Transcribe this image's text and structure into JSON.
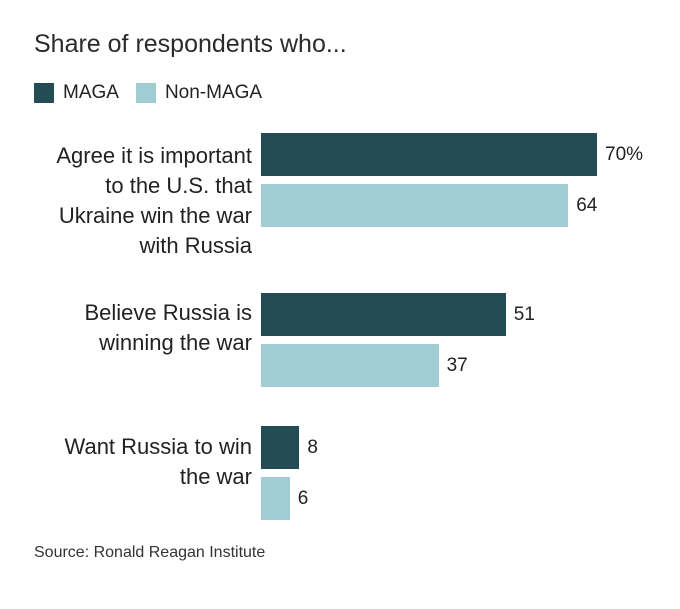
{
  "chart_data": {
    "type": "bar",
    "orientation": "horizontal",
    "title": "Share of respondents who...",
    "categories": [
      "Agree it is important to the U.S. that Ukraine win the war with Russia",
      "Believe Russia is winning the war",
      "Want Russia to win the war"
    ],
    "category_lines": [
      [
        "Agree it is important",
        "to the U.S. that",
        "Ukraine win the war",
        "with Russia"
      ],
      [
        "Believe Russia is",
        "winning the war"
      ],
      [
        "Want Russia to win",
        "the war"
      ]
    ],
    "series": [
      {
        "name": "MAGA",
        "color": "#234c55",
        "values": [
          70,
          51,
          8
        ],
        "labels": [
          "70%",
          "51",
          "8"
        ]
      },
      {
        "name": "Non-MAGA",
        "color": "#a2ccd4",
        "values": [
          64,
          37,
          6
        ],
        "labels": [
          "64",
          "37",
          "6"
        ]
      }
    ],
    "xlim": [
      0,
      100
    ],
    "legend_position": "top-left",
    "source": "Source: Ronald Reagan Institute"
  }
}
